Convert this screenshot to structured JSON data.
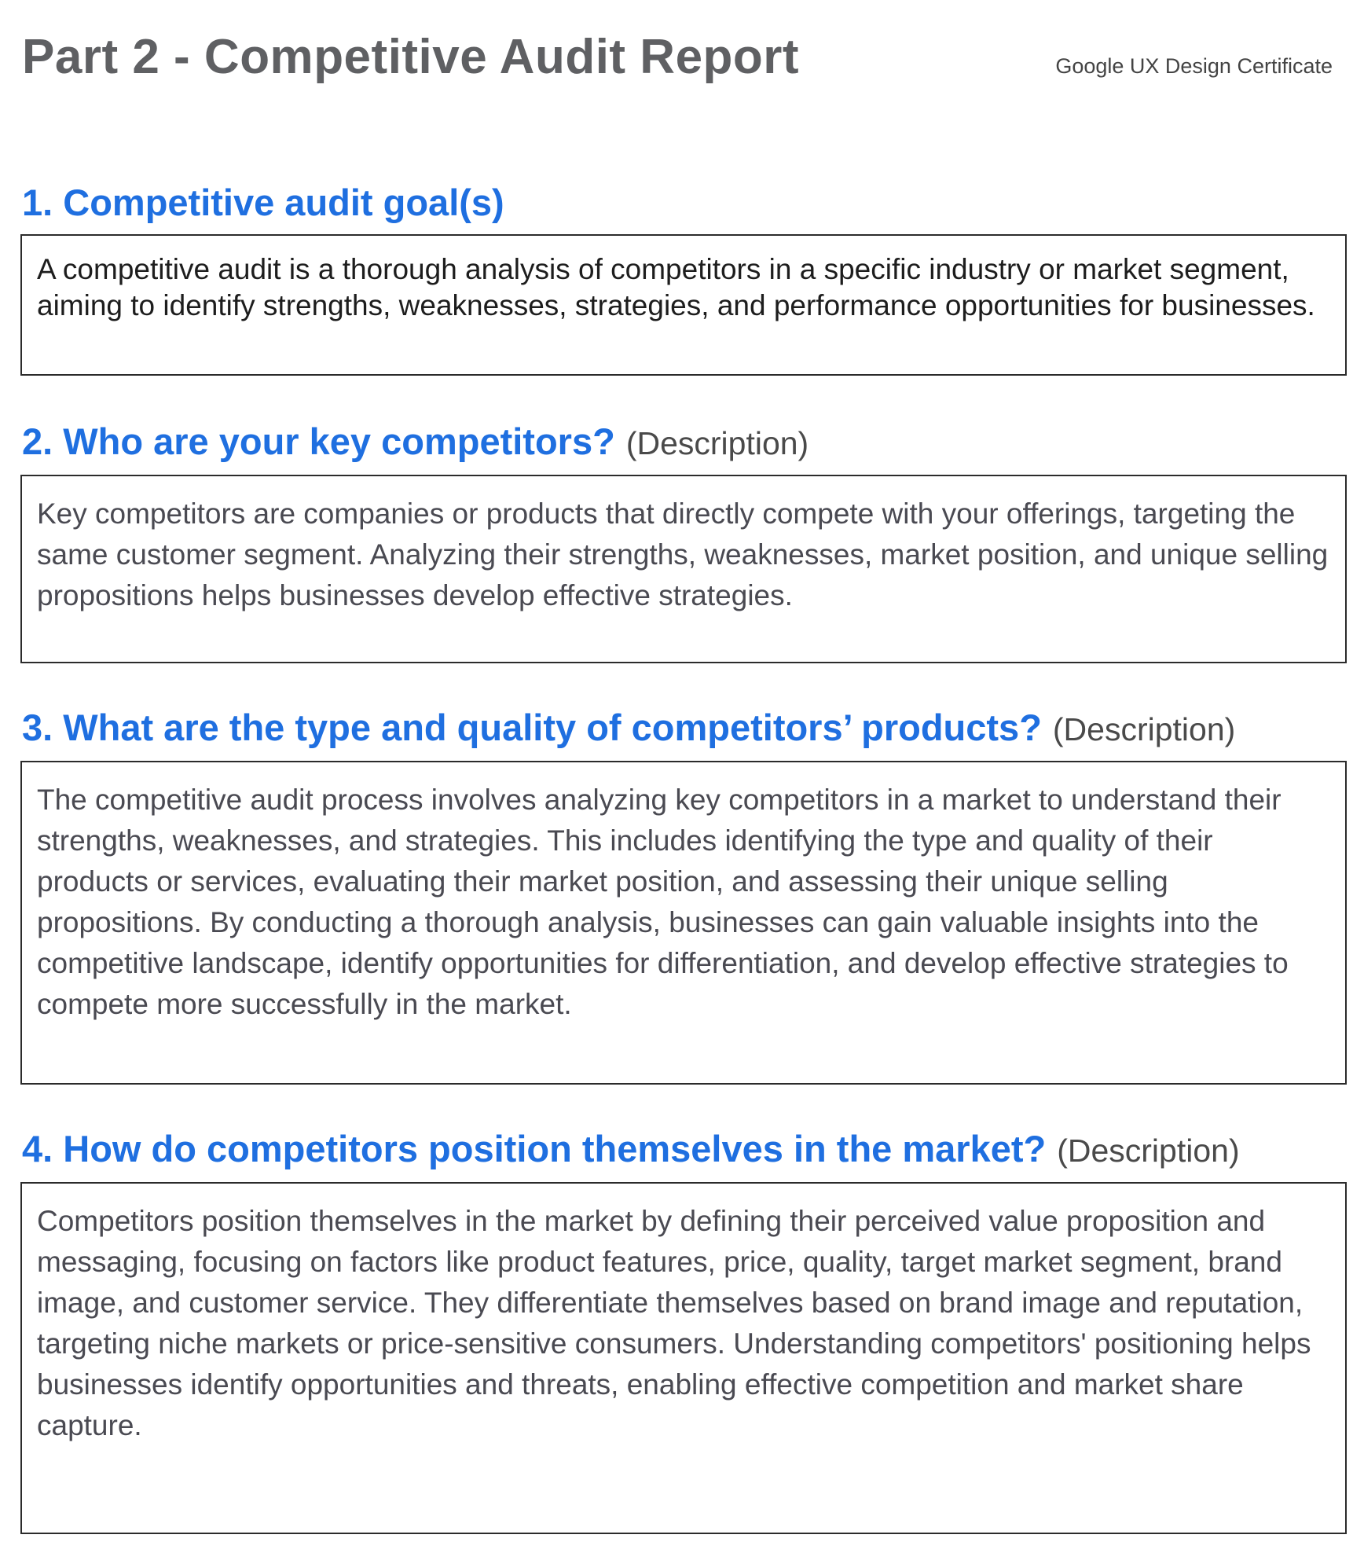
{
  "header": {
    "title": "Part 2 - Competitive Audit Report",
    "subtitle": "Google UX Design Certificate"
  },
  "sections": [
    {
      "number": "1.",
      "question": "Competitive audit goal(s)",
      "tag": "",
      "answer": "A competitive audit is a thorough analysis of competitors in a specific industry or market segment, aiming to identify strengths, weaknesses, strategies, and performance opportunities for businesses."
    },
    {
      "number": "2.",
      "question": "Who are your key competitors?",
      "tag": "(Description)",
      "answer": "Key competitors are companies or products that directly compete with your offerings, targeting the same customer segment. Analyzing their strengths, weaknesses, market position, and unique selling propositions helps businesses develop effective strategies."
    },
    {
      "number": "3.",
      "question": "What are the type and quality of competitors’ products?",
      "tag": "(Description)",
      "answer": "The competitive audit process involves analyzing key competitors in a market to understand their strengths, weaknesses, and strategies. This includes identifying the type and quality of their products or services, evaluating their market position, and assessing their unique selling propositions. By conducting a thorough analysis, businesses can gain valuable insights into the competitive landscape, identify opportunities for differentiation, and develop effective strategies to compete more successfully in the market."
    },
    {
      "number": "4.",
      "question": "How do competitors position themselves in the market?",
      "tag": "(Description)",
      "answer": "Competitors position themselves in the market by defining their perceived value proposition and messaging, focusing on factors like product features, price, quality, target market segment, brand image, and customer service. They differentiate themselves based on brand image and reputation, targeting niche markets or price-sensitive consumers. Understanding competitors' positioning helps businesses identify opportunities and threats, enabling effective competition and market share capture."
    }
  ],
  "colors": {
    "heading_blue": "#1f6fe0",
    "title_gray": "#5f6063",
    "border": "#2b2b2b"
  }
}
